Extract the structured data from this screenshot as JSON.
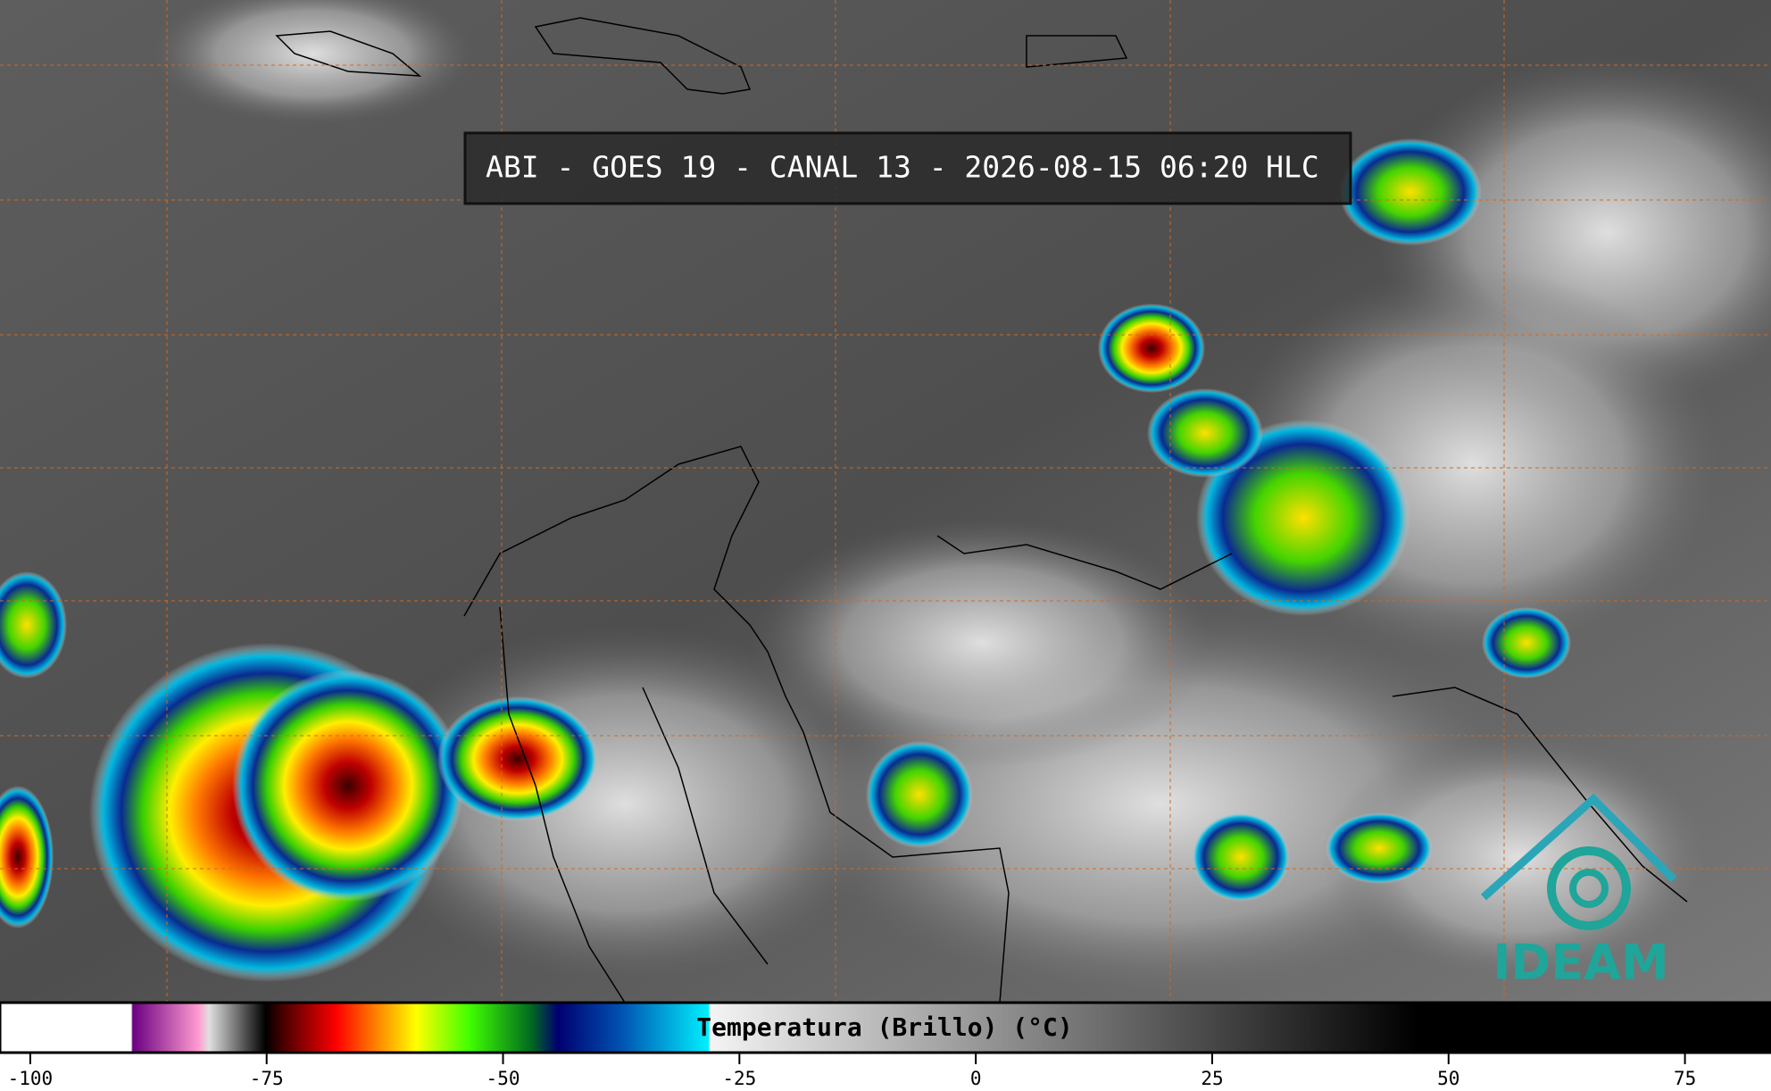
{
  "header": {
    "title": "ABI - GOES 19 - CANAL 13 - 2026-08-15 06:20 HLC"
  },
  "colorbar": {
    "label": "Temperatura (Brillo) (°C)",
    "lim": [
      -103.2,
      84.1
    ],
    "ticks": [
      -100,
      -75,
      -50,
      -25,
      0,
      25,
      50,
      75
    ]
  },
  "logo": {
    "text": "IDEAM"
  }
}
